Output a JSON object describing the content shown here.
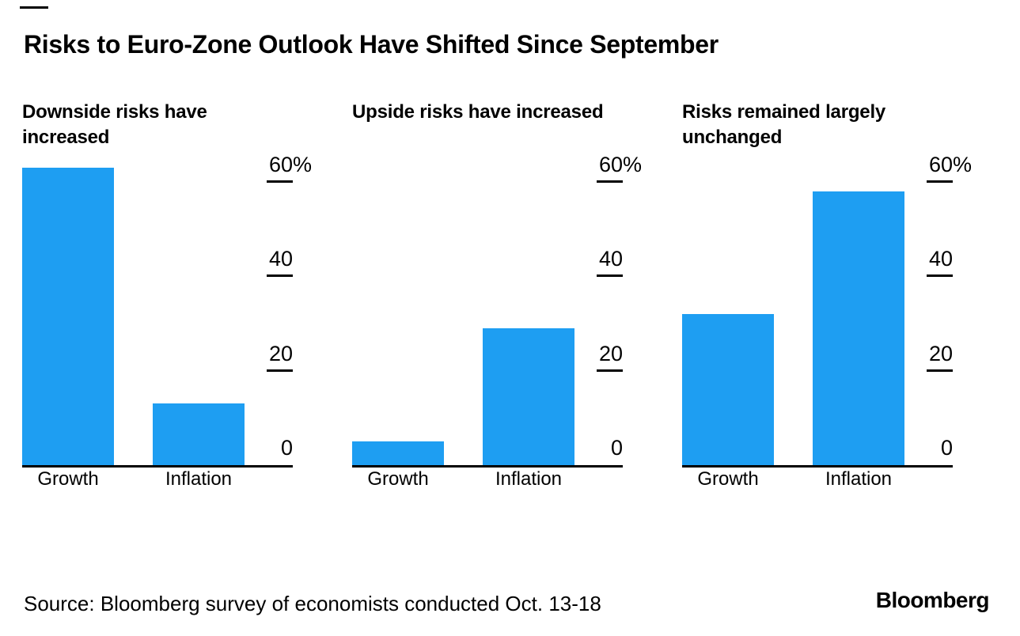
{
  "page": {
    "title": "Risks to Euro-Zone Outlook Have Shifted Since September",
    "source": "Source: Bloomberg survey of economists conducted Oct. 13-18",
    "brand": "Bloomberg",
    "accent_color": "#1e9ef2"
  },
  "axis": {
    "max": 60,
    "unit": "%",
    "ticks": [
      {
        "label": "60",
        "suffix": "%",
        "value": 60,
        "dash": true
      },
      {
        "label": "40",
        "suffix": "",
        "value": 40,
        "dash": true
      },
      {
        "label": "20",
        "suffix": "",
        "value": 20,
        "dash": true
      },
      {
        "label": "0",
        "suffix": "",
        "value": 0,
        "dash": false
      }
    ]
  },
  "chart_data": [
    {
      "type": "bar",
      "subtitle": "Downside risks have increased",
      "categories": [
        "Growth",
        "Inflation"
      ],
      "values": [
        63,
        13
      ],
      "ylim": [
        0,
        60
      ],
      "unit": "%",
      "legend": "none",
      "grid": "off"
    },
    {
      "type": "bar",
      "subtitle": "Upside risks have increased",
      "categories": [
        "Growth",
        "Inflation"
      ],
      "values": [
        5,
        29
      ],
      "ylim": [
        0,
        60
      ],
      "unit": "%",
      "legend": "none",
      "grid": "off"
    },
    {
      "type": "bar",
      "subtitle": "Risks remained largely unchanged",
      "categories": [
        "Growth",
        "Inflation"
      ],
      "values": [
        32,
        58
      ],
      "ylim": [
        0,
        60
      ],
      "unit": "%",
      "legend": "none",
      "grid": "off"
    }
  ]
}
